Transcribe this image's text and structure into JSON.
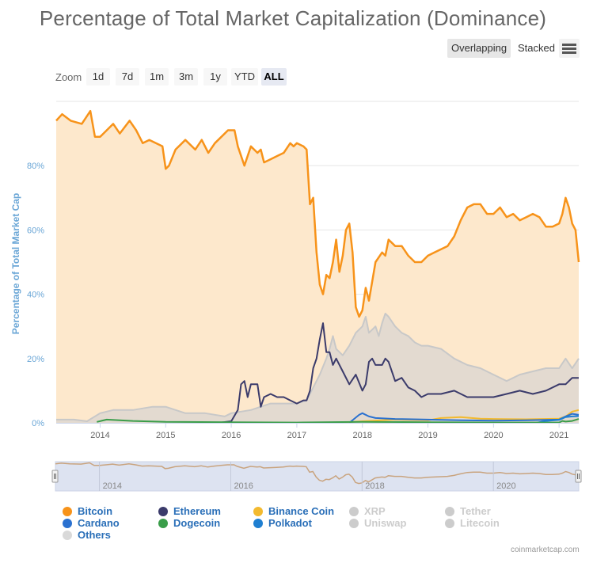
{
  "title": "Percentage of Total Market Capitalization (Dominance)",
  "view_toggle": {
    "overlapping": "Overlapping",
    "stacked": "Stacked"
  },
  "menu_icon": "hamburger-menu-icon",
  "zoom": {
    "label": "Zoom",
    "buttons": [
      "1d",
      "7d",
      "1m",
      "3m",
      "1y",
      "YTD",
      "ALL"
    ],
    "active": "ALL"
  },
  "navigator": {
    "ticks": [
      "2014",
      "2016",
      "2018",
      "2020"
    ]
  },
  "credit": "coinmarketcap.com",
  "legend": [
    {
      "name": "Bitcoin",
      "color": "#f7931a",
      "enabled": true
    },
    {
      "name": "Ethereum",
      "color": "#3b3b6b",
      "enabled": true
    },
    {
      "name": "Binance Coin",
      "color": "#f3ba2f",
      "enabled": true
    },
    {
      "name": "XRP",
      "color": "#cccccc",
      "enabled": false
    },
    {
      "name": "Tether",
      "color": "#cccccc",
      "enabled": false
    },
    {
      "name": "Cardano",
      "color": "#2a71d0",
      "enabled": true
    },
    {
      "name": "Dogecoin",
      "color": "#3a9d4a",
      "enabled": true
    },
    {
      "name": "Polkadot",
      "color": "#1f7fd1",
      "enabled": true
    },
    {
      "name": "Uniswap",
      "color": "#cccccc",
      "enabled": false
    },
    {
      "name": "Litecoin",
      "color": "#cccccc",
      "enabled": false
    },
    {
      "name": "Others",
      "color": "#d9d9d9",
      "enabled": true
    }
  ],
  "chart_data": {
    "type": "area",
    "title": "Percentage of Total Market Capitalization (Dominance)",
    "ylabel": "Percentage of Total Market Cap",
    "xlabel": "",
    "x_ticks": [
      "2014",
      "2015",
      "2016",
      "2017",
      "2018",
      "2019",
      "2020",
      "2021"
    ],
    "y_ticks": [
      "0%",
      "20%",
      "40%",
      "60%",
      "80%"
    ],
    "ylim": [
      0,
      100
    ],
    "xlim": [
      2013.33,
      2021.3
    ],
    "series": [
      {
        "name": "Bitcoin",
        "color": "#f7931a",
        "fill": "#fde8cc",
        "x": [
          2013.33,
          2013.42,
          2013.55,
          2013.72,
          2013.85,
          2013.92,
          2014.0,
          2014.1,
          2014.2,
          2014.3,
          2014.45,
          2014.55,
          2014.65,
          2014.75,
          2014.85,
          2014.95,
          2015.0,
          2015.05,
          2015.15,
          2015.3,
          2015.45,
          2015.55,
          2015.65,
          2015.75,
          2015.85,
          2015.95,
          2016.05,
          2016.1,
          2016.2,
          2016.3,
          2016.4,
          2016.45,
          2016.5,
          2016.6,
          2016.7,
          2016.8,
          2016.9,
          2016.95,
          2017.0,
          2017.1,
          2017.15,
          2017.2,
          2017.25,
          2017.3,
          2017.35,
          2017.4,
          2017.45,
          2017.5,
          2017.55,
          2017.6,
          2017.65,
          2017.7,
          2017.75,
          2017.8,
          2017.85,
          2017.9,
          2017.95,
          2018.0,
          2018.05,
          2018.1,
          2018.2,
          2018.3,
          2018.35,
          2018.4,
          2018.5,
          2018.6,
          2018.7,
          2018.8,
          2018.9,
          2019.0,
          2019.1,
          2019.2,
          2019.3,
          2019.4,
          2019.5,
          2019.6,
          2019.7,
          2019.8,
          2019.9,
          2020.0,
          2020.1,
          2020.2,
          2020.3,
          2020.4,
          2020.5,
          2020.6,
          2020.7,
          2020.8,
          2020.9,
          2021.0,
          2021.05,
          2021.1,
          2021.15,
          2021.2,
          2021.25,
          2021.3
        ],
        "values": [
          94,
          96,
          94,
          93,
          97,
          89,
          89,
          91,
          93,
          90,
          94,
          91,
          87,
          88,
          87,
          86,
          79,
          80,
          85,
          88,
          85,
          88,
          84,
          87,
          89,
          91,
          91,
          86,
          80,
          86,
          84,
          85,
          81,
          82,
          83,
          84,
          87,
          86,
          87,
          86,
          85,
          68,
          70,
          53,
          43,
          40,
          46,
          45,
          50,
          57,
          47,
          52,
          60,
          62,
          53,
          36,
          33,
          35,
          42,
          38,
          50,
          53,
          52,
          57,
          55,
          55,
          52,
          50,
          50,
          52,
          53,
          54,
          55,
          58,
          63,
          67,
          68,
          68,
          65,
          65,
          67,
          64,
          65,
          63,
          64,
          65,
          64,
          61,
          61,
          62,
          65,
          70,
          67,
          62,
          60,
          50
        ]
      },
      {
        "name": "Others",
        "color": "#c8c8c8",
        "fill": "#d9d6d2",
        "x": [
          2013.33,
          2013.6,
          2013.8,
          2014.0,
          2014.2,
          2014.5,
          2014.8,
          2015.0,
          2015.3,
          2015.6,
          2015.9,
          2016.0,
          2016.3,
          2016.6,
          2016.9,
          2017.0,
          2017.15,
          2017.25,
          2017.35,
          2017.45,
          2017.5,
          2017.55,
          2017.6,
          2017.7,
          2017.8,
          2017.9,
          2018.0,
          2018.05,
          2018.1,
          2018.2,
          2018.25,
          2018.3,
          2018.35,
          2018.4,
          2018.5,
          2018.6,
          2018.7,
          2018.8,
          2018.9,
          2019.0,
          2019.2,
          2019.4,
          2019.6,
          2019.8,
          2020.0,
          2020.2,
          2020.4,
          2020.6,
          2020.8,
          2021.0,
          2021.1,
          2021.2,
          2021.3
        ],
        "values": [
          1,
          1,
          0.5,
          3,
          4,
          4,
          5,
          5,
          3,
          3,
          2,
          3,
          4,
          6,
          6,
          6,
          7,
          11,
          15,
          20,
          23,
          27,
          23,
          21,
          24,
          28,
          30,
          33,
          28,
          30,
          27,
          31,
          34,
          33,
          30,
          28,
          27,
          25,
          24,
          24,
          23,
          20,
          18,
          17,
          15,
          13,
          15,
          16,
          17,
          17,
          20,
          17,
          20
        ]
      },
      {
        "name": "Ethereum",
        "color": "#3b3b6b",
        "fill": "none",
        "x": [
          2015.6,
          2015.8,
          2016.0,
          2016.1,
          2016.15,
          2016.2,
          2016.25,
          2016.3,
          2016.4,
          2016.45,
          2016.5,
          2016.6,
          2016.7,
          2016.8,
          2016.9,
          2017.0,
          2017.1,
          2017.15,
          2017.2,
          2017.25,
          2017.3,
          2017.35,
          2017.4,
          2017.45,
          2017.5,
          2017.55,
          2017.6,
          2017.7,
          2017.8,
          2017.9,
          2018.0,
          2018.05,
          2018.1,
          2018.15,
          2018.2,
          2018.3,
          2018.35,
          2018.4,
          2018.5,
          2018.6,
          2018.7,
          2018.8,
          2018.9,
          2019.0,
          2019.2,
          2019.4,
          2019.6,
          2019.8,
          2020.0,
          2020.2,
          2020.4,
          2020.6,
          2020.8,
          2021.0,
          2021.1,
          2021.2,
          2021.3
        ],
        "values": [
          0,
          0,
          0.5,
          4,
          12,
          13,
          8,
          12,
          12,
          5,
          8,
          9,
          8,
          8,
          7,
          6,
          7,
          7,
          10,
          17,
          20,
          26,
          31,
          22,
          22,
          18,
          20,
          16,
          12,
          15,
          10,
          12,
          19,
          20,
          18,
          18,
          20,
          19,
          13,
          14,
          11,
          10,
          8,
          9,
          9,
          10,
          8,
          8,
          8,
          9,
          10,
          9,
          10,
          12,
          12,
          14,
          14
        ]
      },
      {
        "name": "Binance Coin",
        "color": "#f3ba2f",
        "fill": "none",
        "x": [
          2017.6,
          2018.0,
          2018.5,
          2019.0,
          2019.2,
          2019.5,
          2019.8,
          2020.0,
          2020.5,
          2021.0,
          2021.1,
          2021.2,
          2021.3
        ],
        "values": [
          0,
          0.5,
          1,
          0.8,
          1.5,
          1.8,
          1.3,
          1.2,
          1.1,
          1.3,
          2.0,
          3.5,
          4.0
        ]
      },
      {
        "name": "Cardano",
        "color": "#2a71d0",
        "fill": "none",
        "x": [
          2017.8,
          2017.95,
          2018.0,
          2018.1,
          2018.2,
          2018.5,
          2019.0,
          2019.5,
          2020.0,
          2020.5,
          2021.0,
          2021.1,
          2021.2,
          2021.3
        ],
        "values": [
          0,
          2.5,
          3,
          2,
          1.5,
          1.2,
          1,
          0.8,
          0.7,
          0.8,
          1,
          2.0,
          2.8,
          2.5
        ]
      },
      {
        "name": "Polkadot",
        "color": "#1f7fd1",
        "fill": "none",
        "x": [
          2020.65,
          2020.8,
          2021.0,
          2021.1,
          2021.2,
          2021.3
        ],
        "values": [
          0,
          0.6,
          0.9,
          1.8,
          2.0,
          2.1
        ]
      },
      {
        "name": "Dogecoin",
        "color": "#3a9d4a",
        "fill": "none",
        "x": [
          2013.95,
          2014.1,
          2014.5,
          2015.0,
          2016.0,
          2017.0,
          2018.0,
          2019.0,
          2020.0,
          2021.0,
          2021.05,
          2021.1,
          2021.2,
          2021.3
        ],
        "values": [
          0.3,
          1,
          0.6,
          0.3,
          0.2,
          0.1,
          0.3,
          0.2,
          0.1,
          0.1,
          0.6,
          0.4,
          0.6,
          1.2
        ]
      }
    ]
  }
}
